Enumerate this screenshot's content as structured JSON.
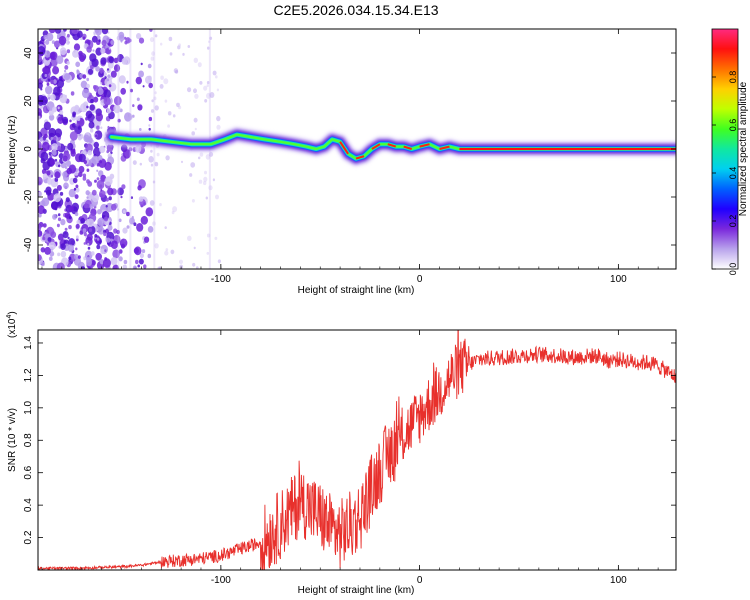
{
  "title": "C2E5.2026.034.15.34.E13",
  "chart_data": [
    {
      "type": "heatmap",
      "name": "spectrogram",
      "xlabel": "Height of straight line (km)",
      "ylabel": "Frequency (Hz)",
      "xlim": [
        -192,
        129
      ],
      "ylim": [
        -50,
        50
      ],
      "xticks": [
        -100,
        0,
        100
      ],
      "xtick_labels": [
        "-100",
        "0",
        "100"
      ],
      "yticks": [
        -40,
        -20,
        0,
        20,
        40
      ],
      "ytick_labels": [
        "-40",
        "-20",
        "0",
        "20",
        "40"
      ],
      "colorbar": {
        "label": "Normalized spectral amplitude",
        "range": [
          0,
          1
        ],
        "ticks": [
          0.0,
          0.2,
          0.4,
          0.6,
          0.8
        ],
        "tick_labels": [
          "0.0",
          "0.2",
          "0.4",
          "0.6",
          "0.8"
        ],
        "colors": [
          "#ffffff",
          "#b9a3ec",
          "#7a28dc",
          "#2000ff",
          "#0060ff",
          "#00d0f0",
          "#10e8a0",
          "#40ff20",
          "#c0ff00",
          "#ffd000",
          "#ff7000",
          "#ff1010",
          "#ff2a80"
        ]
      },
      "ridge": {
        "x": [
          -155,
          -145,
          -135,
          -125,
          -115,
          -105,
          -98,
          -92,
          -85,
          -78,
          -70,
          -63,
          -57,
          -52,
          -48,
          -44,
          -40,
          -36,
          -32,
          -28,
          -24,
          -20,
          -16,
          -12,
          -8,
          -4,
          0,
          5,
          10,
          15,
          20,
          40,
          60,
          85,
          100,
          129
        ],
        "y": [
          5,
          4,
          4,
          3,
          2,
          2,
          4,
          6,
          5,
          4,
          3,
          2,
          1,
          0,
          1,
          4,
          3,
          -2,
          -4,
          -3,
          0,
          2,
          2,
          1,
          1,
          0,
          1,
          2,
          0,
          1,
          0,
          0,
          0,
          0,
          0,
          0
        ]
      },
      "low_noise_boundary_x": -135
    },
    {
      "type": "line",
      "name": "snr",
      "xlabel": "Height of straight line (km)",
      "ylabel": "SNR (10 * v/v)",
      "scale_note": "(x10",
      "scale_exp": "4",
      "xlim": [
        -192,
        129
      ],
      "ylim": [
        0,
        1.48
      ],
      "xticks": [
        -100,
        0,
        100
      ],
      "xtick_labels": [
        "-100",
        "0",
        "100"
      ],
      "yticks": [
        0.2,
        0.4,
        0.6,
        0.8,
        1.0,
        1.2,
        1.4
      ],
      "ytick_labels": [
        "0.2",
        "0.4",
        "0.6",
        "0.8",
        "1.0",
        "1.2",
        "1.4"
      ],
      "series": [
        {
          "name": "SNR",
          "color": "#e8302c",
          "x": [
            -192,
            -170,
            -150,
            -140,
            -130,
            -120,
            -110,
            -100,
            -90,
            -80,
            -75,
            -70,
            -65,
            -60,
            -55,
            -50,
            -45,
            -40,
            -35,
            -30,
            -25,
            -20,
            -15,
            -10,
            -5,
            0,
            5,
            10,
            15,
            20,
            25,
            30,
            40,
            50,
            60,
            70,
            80,
            85,
            90,
            95,
            100,
            105,
            110,
            115,
            120,
            125,
            129
          ],
          "y": [
            0.01,
            0.012,
            0.02,
            0.03,
            0.05,
            0.06,
            0.07,
            0.09,
            0.13,
            0.17,
            0.22,
            0.28,
            0.35,
            0.43,
            0.38,
            0.33,
            0.26,
            0.22,
            0.27,
            0.33,
            0.48,
            0.62,
            0.72,
            0.8,
            0.88,
            0.95,
            1.03,
            1.1,
            1.18,
            1.24,
            1.27,
            1.3,
            1.31,
            1.32,
            1.33,
            1.32,
            1.31,
            1.32,
            1.32,
            1.29,
            1.3,
            1.29,
            1.28,
            1.28,
            1.26,
            1.22,
            1.19
          ]
        }
      ]
    }
  ]
}
